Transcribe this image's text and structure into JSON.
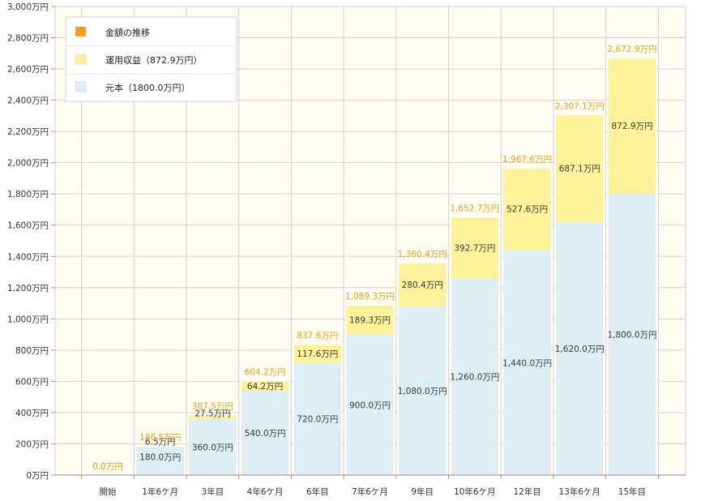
{
  "chart_data": {
    "type": "bar",
    "stacked": true,
    "categories": [
      "開始",
      "1年6ケ月",
      "3年目",
      "4年6ケ月",
      "6年目",
      "7年6ケ月",
      "9年目",
      "10年6ケ月",
      "12年目",
      "13年6ケ月",
      "15年目"
    ],
    "series": [
      {
        "name": "元本（1800.0万円）",
        "values": [
          0,
          180,
          360,
          540,
          720,
          900,
          1080,
          1260,
          1440,
          1620,
          1800
        ],
        "labels": [
          "",
          "180.0万円",
          "360.0万円",
          "540.0万円",
          "720.0万円",
          "900.0万円",
          "1,080.0万円",
          "1,260.0万円",
          "1,440.0万円",
          "1,620.0万円",
          "1,800.0万円"
        ],
        "color": "#ddeef5"
      },
      {
        "name": "運用収益（872.9万円）",
        "values": [
          0,
          6.5,
          27.5,
          64.2,
          117.6,
          189.3,
          280.4,
          392.7,
          527.6,
          687.1,
          872.9
        ],
        "labels": [
          "",
          "6.5万円",
          "27.5万円",
          "64.2万円",
          "117.6万円",
          "189.3万円",
          "280.4万円",
          "392.7万円",
          "527.6万円",
          "687.1万円",
          "872.9万円"
        ],
        "color": "#fbf29a"
      }
    ],
    "totals": {
      "name": "金額の推移",
      "values": [
        0,
        186.5,
        387.5,
        604.2,
        837.6,
        1089.3,
        1360.4,
        1652.7,
        1967.6,
        2307.1,
        2672.9
      ],
      "labels": [
        "0.0万円",
        "186.5万円",
        "387.5万円",
        "604.2万円",
        "837.6万円",
        "1,089.3万円",
        "1,360.4万円",
        "1,652.7万円",
        "1,967.6万円",
        "2,307.1万円",
        "2,672.9万円"
      ],
      "color": "#f5a011"
    },
    "y_ticks": [
      "0万円",
      "200万円",
      "400万円",
      "600万円",
      "800万円",
      "1,000万円",
      "1,200万円",
      "1,400万円",
      "1,600万円",
      "1,800万円",
      "2,000万円",
      "2,200万円",
      "2,400万円",
      "2,600万円",
      "2,800万円",
      "3,000万円"
    ],
    "ylim": [
      0,
      3000
    ],
    "grid": true,
    "legend_position": "top-left"
  }
}
